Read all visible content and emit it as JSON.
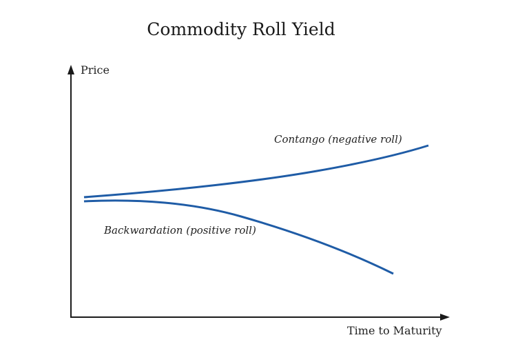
{
  "title": "Commodity Roll Yield",
  "axes": {
    "y_label": "Price",
    "x_label": "Time to Maturity"
  },
  "curves": [
    {
      "label": "Contango (negative roll)",
      "direction": "upward"
    },
    {
      "label": "Backwardation (positive roll)",
      "direction": "downward"
    }
  ],
  "colors": {
    "curve": "#1f5ca6",
    "axis": "#1a1a1a"
  }
}
